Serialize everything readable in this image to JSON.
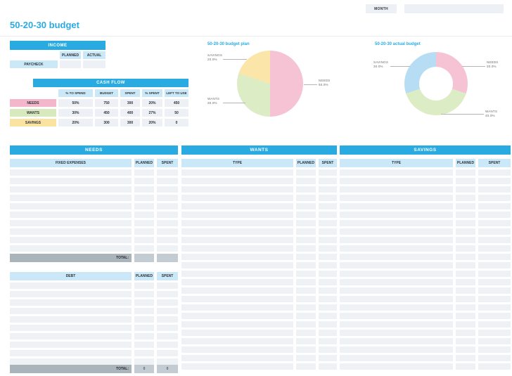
{
  "page": {
    "title": "50-20-30 budget"
  },
  "topbar": {
    "month_label": "MONTH",
    "month_value": ""
  },
  "income": {
    "header": "INCOME",
    "columns": [
      "PLANNED",
      "ACTUAL"
    ],
    "rows": [
      {
        "label": "PAYCHECK",
        "planned": "",
        "actual": ""
      }
    ]
  },
  "cash_flow": {
    "header": "CASH FLOW",
    "columns": [
      "% TO SPEND",
      "BUDGET",
      "SPENT",
      "% SPENT",
      "LEFT TO USE"
    ],
    "rows": [
      {
        "label": "NEEDS",
        "color": "#f4b6ca",
        "pct_to_spend": "50%",
        "budget": "750",
        "spent": "300",
        "pct_spent": "20%",
        "left_to_use": "450"
      },
      {
        "label": "WANTS",
        "color": "#d8e9bd",
        "pct_to_spend": "30%",
        "budget": "450",
        "spent": "400",
        "pct_spent": "27%",
        "left_to_use": "50"
      },
      {
        "label": "SAVINGS",
        "color": "#fae3a0",
        "pct_to_spend": "20%",
        "budget": "300",
        "spent": "300",
        "pct_spent": "20%",
        "left_to_use": "0"
      }
    ]
  },
  "chart_data": [
    {
      "type": "pie",
      "title": "50-20-30 budget plan",
      "labels": [
        "NEEDS",
        "WANTS",
        "SAVINGS"
      ],
      "values": [
        50.0,
        30.0,
        20.0
      ],
      "value_labels": [
        "50.0%",
        "30.0%",
        "20.0%"
      ],
      "colors": [
        "#f6c3d4",
        "#dcecc4",
        "#fbe5a8"
      ],
      "legend_position": "outside-callouts"
    },
    {
      "type": "donut",
      "title": "50-20-30 actual budget",
      "labels": [
        "NEEDS",
        "WANTS",
        "SAVINGS"
      ],
      "values": [
        30.0,
        40.0,
        30.0
      ],
      "value_labels": [
        "30.0%",
        "40.0%",
        "30.0%"
      ],
      "colors": [
        "#f6c3d4",
        "#dcecc4",
        "#b6ddf4"
      ],
      "legend_position": "outside-callouts"
    }
  ],
  "sections": {
    "needs": {
      "header": "NEEDS",
      "expenses": {
        "name_col": "FIXED EXPENSES",
        "planned_col": "PLANNED",
        "spent_col": "SPENT",
        "empty_rows": 10,
        "total_label": "TOTAL:",
        "total_planned": "",
        "total_spent": ""
      },
      "debt": {
        "name_col": "DEBT",
        "planned_col": "PLANNED",
        "spent_col": "SPENT",
        "empty_rows": 10,
        "total_label": "TOTAL:",
        "total_planned": "0",
        "total_spent": "0"
      }
    },
    "wants": {
      "header": "WANTS",
      "name_col": "TYPE",
      "planned_col": "PLANNED",
      "spent_col": "SPENT",
      "empty_rows": 24
    },
    "savings": {
      "header": "SAVINGS",
      "name_col": "TYPE",
      "planned_col": "PLANNED",
      "spent_col": "SPENT",
      "empty_rows": 24
    }
  },
  "colors": {
    "accent_blue": "#29abe2",
    "light_blue_cell": "#cbe8f8",
    "empty_cell_gray": "#eef2f5",
    "total_bar_gray": "#aab4bb",
    "total_value_gray": "#c3ccd2"
  }
}
